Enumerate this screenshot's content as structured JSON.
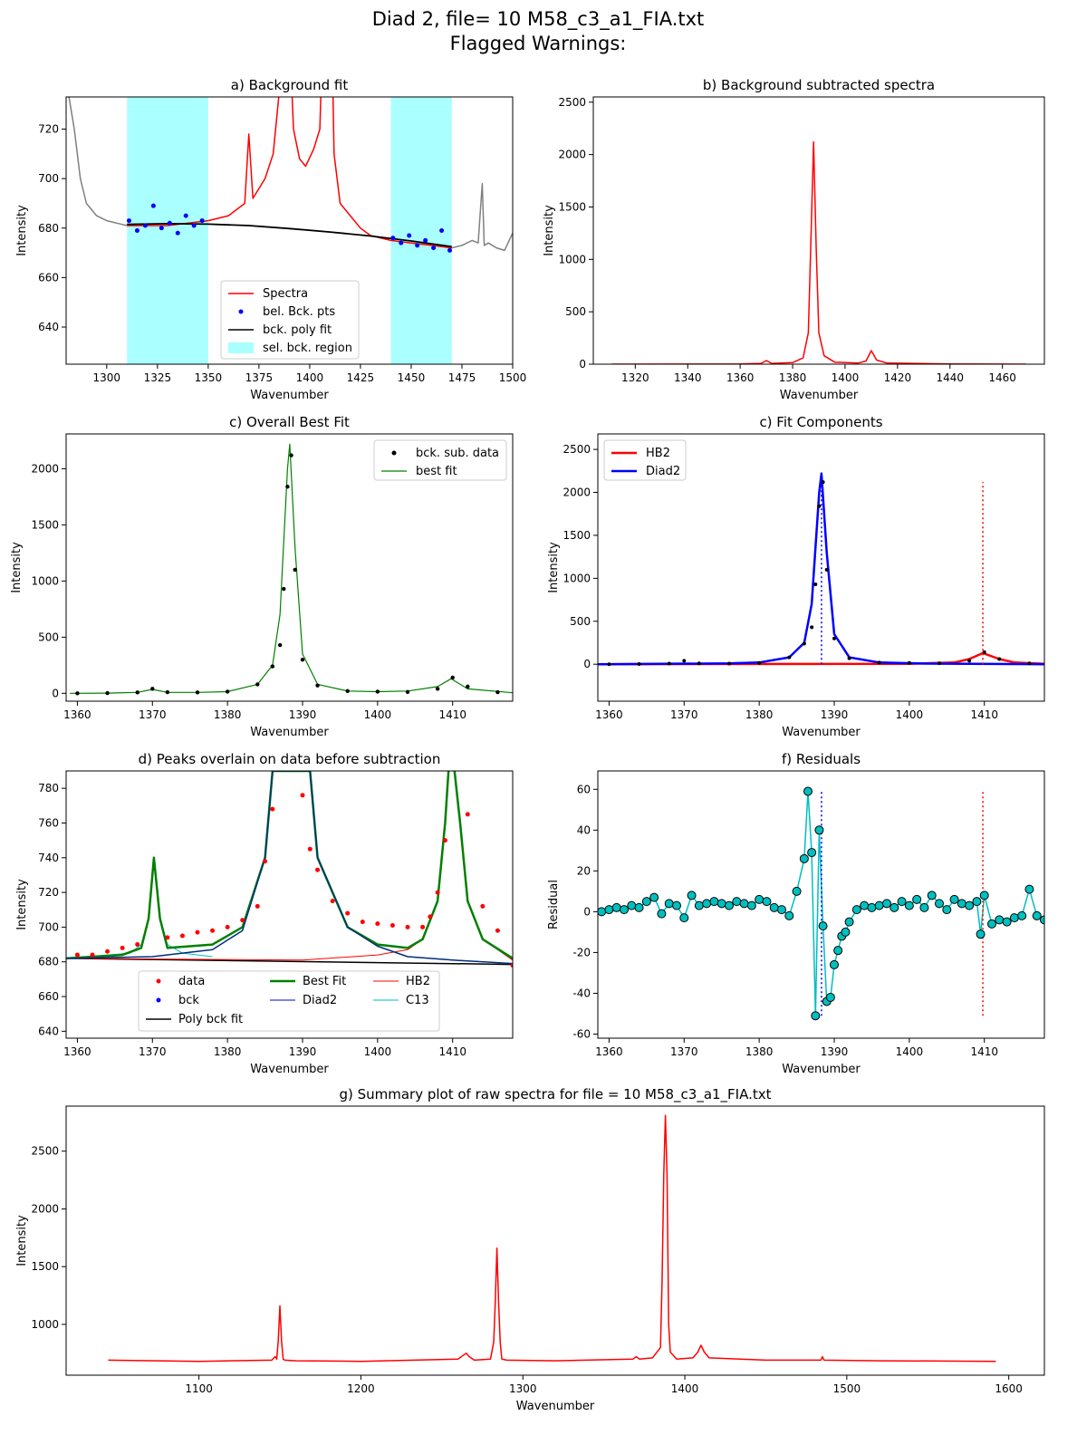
{
  "suptitle": [
    "Diad 2, file= 10 M58_c3_a1_FIA.txt",
    "Flagged Warnings:"
  ],
  "colors": {
    "spectra": "#ff0000",
    "points": "#0000ff",
    "fit": "#000000",
    "region": "#aaffff",
    "raw": "#808080",
    "best": "#008000",
    "diad2": "#0000cc",
    "c13": "#00bfbf",
    "resid": "#00bfbf"
  },
  "chart_data": [
    {
      "id": "a",
      "type": "line",
      "title": "a) Background fit",
      "xlabel": "Wavenumber",
      "ylabel": "Intensity",
      "xlim": [
        1280,
        1500
      ],
      "ylim": [
        625,
        733
      ],
      "xticks": [
        1300,
        1325,
        1350,
        1375,
        1400,
        1425,
        1450,
        1475,
        1500
      ],
      "yticks": [
        640,
        660,
        680,
        700,
        720
      ],
      "regions": [
        [
          1310,
          1350
        ],
        [
          1440,
          1470
        ]
      ],
      "raw_spectrum": {
        "x": [
          1280,
          1284,
          1287,
          1290,
          1295,
          1300,
          1305,
          1310
        ],
        "y": [
          740,
          720,
          700,
          690,
          685,
          683,
          682,
          681
        ]
      },
      "raw_spectrum_right": {
        "x": [
          1470,
          1475,
          1480,
          1483,
          1485,
          1486,
          1488,
          1492,
          1496,
          1500
        ],
        "y": [
          672,
          673,
          675,
          674,
          698,
          673,
          674,
          672,
          671,
          678
        ]
      },
      "spectra": {
        "x": [
          1310,
          1330,
          1350,
          1360,
          1368,
          1370,
          1372,
          1378,
          1382,
          1385,
          1387,
          1390,
          1392,
          1395,
          1398,
          1402,
          1405,
          1407,
          1410,
          1412,
          1415,
          1420,
          1425,
          1430,
          1440,
          1450,
          1460,
          1470
        ],
        "y": [
          681,
          681,
          683,
          685,
          690,
          718,
          692,
          700,
          710,
          735,
          770,
          760,
          720,
          708,
          705,
          712,
          720,
          775,
          800,
          710,
          690,
          685,
          680,
          677,
          675,
          674,
          673,
          672
        ]
      },
      "bck_points": {
        "x": [
          1311,
          1315,
          1319,
          1323,
          1327,
          1331,
          1335,
          1339,
          1343,
          1347,
          1441,
          1445,
          1449,
          1453,
          1457,
          1461,
          1465,
          1469
        ],
        "y": [
          683,
          679,
          681,
          689,
          680,
          682,
          678,
          685,
          681,
          683,
          676,
          674,
          677,
          673,
          675,
          672,
          679,
          671
        ]
      },
      "poly_fit": {
        "x": [
          1310,
          1330,
          1350,
          1370,
          1390,
          1410,
          1430,
          1450,
          1470
        ],
        "y": [
          681.5,
          681.8,
          681.6,
          681,
          679.8,
          678.4,
          676.8,
          674.8,
          672.5
        ]
      },
      "legend": [
        "Spectra",
        "bel. Bck. pts",
        "bck. poly fit",
        "sel. bck. region"
      ]
    },
    {
      "id": "b",
      "type": "line",
      "title": "b) Background subtracted spectra",
      "xlabel": "Wavenumber",
      "ylabel": "Intensity",
      "xlim": [
        1304,
        1476
      ],
      "ylim": [
        0,
        2550
      ],
      "xticks": [
        1320,
        1340,
        1360,
        1380,
        1400,
        1420,
        1440,
        1460
      ],
      "yticks": [
        0,
        500,
        1000,
        1500,
        2000,
        2500
      ],
      "series": {
        "x": [
          1311,
          1360,
          1368,
          1370,
          1372,
          1380,
          1384,
          1386,
          1387,
          1388,
          1389,
          1390,
          1392,
          1396,
          1405,
          1408,
          1410,
          1412,
          1416,
          1440,
          1469
        ],
        "y": [
          0,
          3,
          8,
          35,
          8,
          15,
          60,
          300,
          1200,
          2120,
          1100,
          300,
          80,
          20,
          10,
          30,
          130,
          40,
          10,
          3,
          0
        ]
      }
    },
    {
      "id": "c",
      "type": "line",
      "title": "c) Overall Best Fit",
      "xlabel": "Wavenumber",
      "ylabel": "Intensity",
      "xlim": [
        1358.5,
        1418
      ],
      "ylim": [
        -70,
        2310
      ],
      "xticks": [
        1360,
        1370,
        1380,
        1390,
        1400,
        1410
      ],
      "yticks": [
        0,
        500,
        1000,
        1500,
        2000
      ],
      "data_points": {
        "x": [
          1360,
          1364,
          1368,
          1370,
          1372,
          1376,
          1380,
          1384,
          1386,
          1387,
          1387.5,
          1388,
          1388.5,
          1389,
          1390,
          1392,
          1396,
          1400,
          1404,
          1408,
          1410,
          1412,
          1416
        ],
        "y": [
          0,
          2,
          8,
          40,
          10,
          8,
          15,
          80,
          240,
          430,
          930,
          1840,
          2120,
          1100,
          300,
          70,
          20,
          15,
          12,
          40,
          140,
          60,
          10
        ]
      },
      "best_fit": {
        "x": [
          1359,
          1364,
          1368,
          1370,
          1372,
          1376,
          1380,
          1384,
          1386,
          1387,
          1388,
          1388.3,
          1389,
          1390,
          1392,
          1396,
          1400,
          1404,
          1408,
          1409.8,
          1412,
          1418
        ],
        "y": [
          0,
          2,
          8,
          35,
          8,
          8,
          15,
          80,
          250,
          700,
          2000,
          2220,
          1300,
          350,
          80,
          20,
          15,
          20,
          60,
          130,
          40,
          5
        ]
      },
      "legend": [
        "bck. sub. data",
        "best fit"
      ]
    },
    {
      "id": "d",
      "type": "line",
      "title": "c) Fit Components",
      "xlabel": "Wavenumber",
      "ylabel": "Intensity",
      "xlim": [
        1358.5,
        1418
      ],
      "ylim": [
        -430,
        2680
      ],
      "xticks": [
        1360,
        1370,
        1380,
        1390,
        1400,
        1410
      ],
      "yticks": [
        0,
        500,
        1000,
        1500,
        2000,
        2500
      ],
      "hb2": {
        "x": [
          1358.5,
          1400,
          1406,
          1408,
          1409.8,
          1412,
          1414,
          1418
        ],
        "y": [
          0,
          5,
          20,
          60,
          130,
          60,
          20,
          5
        ]
      },
      "diad2": {
        "x": [
          1358.5,
          1376,
          1380,
          1384,
          1386,
          1387,
          1388,
          1388.3,
          1389,
          1390,
          1392,
          1396,
          1402,
          1418
        ],
        "y": [
          0,
          10,
          20,
          80,
          250,
          700,
          2000,
          2220,
          1300,
          350,
          80,
          20,
          8,
          0
        ]
      },
      "data_points": {
        "x": [
          1360,
          1364,
          1368,
          1370,
          1372,
          1376,
          1380,
          1384,
          1386,
          1387,
          1387.5,
          1388,
          1388.5,
          1389,
          1390,
          1392,
          1396,
          1400,
          1404,
          1408,
          1410,
          1412,
          1416
        ],
        "y": [
          0,
          2,
          8,
          40,
          10,
          8,
          15,
          80,
          240,
          430,
          930,
          1840,
          2120,
          1100,
          300,
          70,
          20,
          15,
          12,
          40,
          140,
          60,
          10
        ]
      },
      "vlines": [
        {
          "x": 1388.3,
          "y": 2220,
          "color": "#0000ff"
        },
        {
          "x": 1409.8,
          "y": 2120,
          "color": "#ff0000"
        }
      ],
      "legend": [
        "HB2",
        "Diad2"
      ]
    },
    {
      "id": "e",
      "type": "line",
      "title": "d) Peaks overlain on data before subtraction",
      "xlabel": "Wavenumber",
      "ylabel": "Intensity",
      "xlim": [
        1358.5,
        1418
      ],
      "ylim": [
        636,
        790
      ],
      "xticks": [
        1360,
        1370,
        1380,
        1390,
        1400,
        1410
      ],
      "yticks": [
        640,
        660,
        680,
        700,
        720,
        740,
        760,
        780
      ],
      "data_points": {
        "x": [
          1360,
          1362,
          1364,
          1366,
          1368,
          1372,
          1374,
          1376,
          1378,
          1380,
          1382,
          1384,
          1385,
          1386,
          1390,
          1391,
          1392,
          1394,
          1396,
          1398,
          1400,
          1402,
          1404,
          1406,
          1407,
          1408,
          1409,
          1412,
          1414,
          1416,
          1418
        ],
        "y": [
          684,
          684,
          686,
          688,
          690,
          694,
          695,
          697,
          698,
          700,
          704,
          712,
          738,
          768,
          776,
          745,
          733,
          715,
          708,
          703,
          702,
          701,
          700,
          700,
          706,
          720,
          750,
          765,
          712,
          698,
          678
        ]
      },
      "best_fit": {
        "x": [
          1358.5,
          1366,
          1368.5,
          1369.5,
          1370.2,
          1371,
          1372,
          1378,
          1382,
          1385,
          1386,
          1387,
          1390,
          1391,
          1392,
          1396,
          1400,
          1404,
          1406,
          1408,
          1409,
          1409.6,
          1410,
          1411,
          1412,
          1414,
          1418
        ],
        "y": [
          682,
          684,
          688,
          705,
          740,
          705,
          688,
          690,
          700,
          740,
          790,
          790,
          790,
          790,
          740,
          700,
          690,
          688,
          693,
          715,
          760,
          800,
          800,
          760,
          715,
          693,
          682
        ]
      },
      "hb2": {
        "x": [
          1358.5,
          1390,
          1400,
          1404,
          1406,
          1408,
          1409,
          1409.6,
          1410,
          1411,
          1412,
          1414,
          1418
        ],
        "y": [
          682,
          681,
          684,
          687,
          693,
          715,
          760,
          800,
          800,
          760,
          715,
          693,
          681
        ]
      },
      "diad2": {
        "x": [
          1358.5,
          1370,
          1378,
          1382,
          1385,
          1386,
          1387,
          1390,
          1391,
          1392,
          1396,
          1400,
          1404,
          1410,
          1418
        ],
        "y": [
          682,
          683,
          687,
          698,
          740,
          790,
          790,
          790,
          790,
          740,
          700,
          689,
          683,
          681,
          679
        ]
      },
      "c13": {
        "x": [
          1358.5,
          1367,
          1368.5,
          1369.5,
          1370.2,
          1371,
          1372,
          1374,
          1378
        ],
        "y": [
          682,
          685,
          690,
          705,
          740,
          705,
          690,
          685,
          683
        ]
      },
      "poly_bck": {
        "x": [
          1358.5,
          1418
        ],
        "y": [
          682,
          678.5
        ]
      },
      "legend": [
        "data",
        "bck",
        "Poly bck fit",
        "Best Fit",
        "Diad2",
        "HB2",
        "C13"
      ]
    },
    {
      "id": "f",
      "type": "line",
      "title": "f) Residuals",
      "xlabel": "Wavenumber",
      "ylabel": "Residual",
      "xlim": [
        1358.5,
        1418
      ],
      "ylim": [
        -62,
        69
      ],
      "xticks": [
        1360,
        1370,
        1380,
        1390,
        1400,
        1410
      ],
      "yticks": [
        -60,
        -40,
        -20,
        0,
        20,
        40,
        60
      ],
      "series": {
        "x": [
          1359,
          1360,
          1361,
          1362,
          1363,
          1364,
          1365,
          1366,
          1367,
          1368,
          1369,
          1370,
          1371,
          1372,
          1373,
          1374,
          1375,
          1376,
          1377,
          1378,
          1379,
          1380,
          1381,
          1382,
          1383,
          1384,
          1385,
          1386,
          1386.5,
          1387,
          1387.5,
          1388,
          1388.5,
          1389,
          1389.5,
          1390,
          1390.5,
          1391,
          1391.5,
          1392,
          1393,
          1394,
          1395,
          1396,
          1397,
          1398,
          1399,
          1400,
          1401,
          1402,
          1403,
          1404,
          1405,
          1406,
          1407,
          1408,
          1409,
          1409.5,
          1410,
          1411,
          1412,
          1413,
          1414,
          1415,
          1416,
          1417,
          1418
        ],
        "y": [
          0,
          1,
          2,
          1,
          3,
          2,
          5,
          7,
          -1,
          4,
          3,
          -3,
          8,
          3,
          4,
          5,
          4,
          3,
          5,
          4,
          3,
          6,
          5,
          2,
          1,
          -2,
          10,
          26,
          59,
          29,
          -51,
          40,
          -7,
          -44,
          -42,
          -26,
          -19,
          -12,
          -10,
          -5,
          1,
          3,
          2,
          3,
          4,
          2,
          5,
          3,
          6,
          2,
          8,
          4,
          1,
          6,
          4,
          3,
          5,
          -11,
          8,
          -6,
          -4,
          -5,
          -3,
          -2,
          11,
          -2,
          -4
        ]
      },
      "vlines": [
        {
          "x": 1388.3,
          "y0": -51,
          "y1": 59,
          "color": "#0000ff"
        },
        {
          "x": 1409.8,
          "y0": -51,
          "y1": 59,
          "color": "#ff0000"
        }
      ]
    },
    {
      "id": "g",
      "type": "line",
      "title": "g) Summary plot of raw spectra for file = 10 M58_c3_a1_FIA.txt",
      "xlabel": "Wavenumber",
      "ylabel": "Intensity",
      "xlim": [
        1018,
        1622
      ],
      "ylim": [
        560,
        2890
      ],
      "xticks": [
        1100,
        1200,
        1300,
        1400,
        1500,
        1600
      ],
      "yticks": [
        1000,
        1500,
        2000,
        2500
      ],
      "series": {
        "x": [
          1044,
          1100,
          1145,
          1147,
          1148,
          1149,
          1150,
          1151,
          1152,
          1153,
          1160,
          1200,
          1260,
          1263,
          1265,
          1267,
          1270,
          1280,
          1282,
          1283,
          1284,
          1285,
          1286,
          1287,
          1290,
          1320,
          1368,
          1370,
          1372,
          1380,
          1385,
          1386,
          1387,
          1388,
          1389,
          1390,
          1391,
          1395,
          1405,
          1408,
          1410,
          1412,
          1415,
          1450,
          1484,
          1485,
          1486,
          1520,
          1592
        ],
        "y": [
          690,
          680,
          690,
          720,
          700,
          860,
          1160,
          860,
          700,
          690,
          685,
          680,
          700,
          730,
          750,
          720,
          690,
          700,
          850,
          1200,
          1660,
          1200,
          850,
          700,
          690,
          685,
          700,
          720,
          700,
          710,
          800,
          1400,
          2300,
          2810,
          2300,
          1000,
          760,
          700,
          710,
          760,
          820,
          760,
          710,
          690,
          690,
          720,
          690,
          685,
          680
        ]
      }
    }
  ]
}
